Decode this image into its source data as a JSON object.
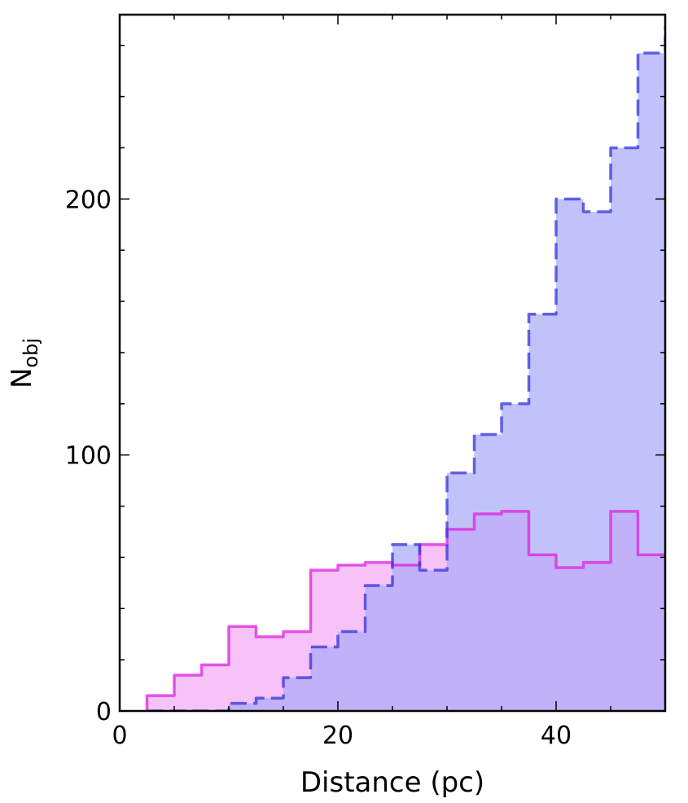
{
  "chart_data": {
    "type": "histogram",
    "xlabel": "Distance (pc)",
    "ylabel": "N",
    "ylabel_subscript": "obj",
    "xlim": [
      0,
      50
    ],
    "ylim": [
      0,
      272
    ],
    "x_ticks": [
      0,
      20,
      40
    ],
    "y_ticks": [
      0,
      100,
      200
    ],
    "grid": false,
    "bin_edges": [
      2.5,
      5,
      7.5,
      10,
      12.5,
      15,
      17.5,
      20,
      22.5,
      25,
      27.5,
      30,
      32.5,
      35,
      37.5,
      40,
      42.5,
      45,
      47.5,
      50
    ],
    "series": [
      {
        "style": "solid",
        "line_color": "#dd22dd",
        "fill_color": "#f7bff7",
        "values": [
          6,
          14,
          18,
          33,
          29,
          31,
          55,
          57,
          58,
          57,
          65,
          71,
          77,
          78,
          61,
          56,
          58,
          78,
          61
        ]
      },
      {
        "style": "dashed",
        "line_color": "#3333dd",
        "fill_color": "#aaaaf8",
        "values": [
          0,
          0,
          0,
          3,
          5,
          13,
          25,
          31,
          49,
          65,
          55,
          93,
          108,
          120,
          155,
          200,
          195,
          220,
          257
        ]
      }
    ],
    "extra_top_value": 267,
    "extra_top_value_series": 1
  }
}
